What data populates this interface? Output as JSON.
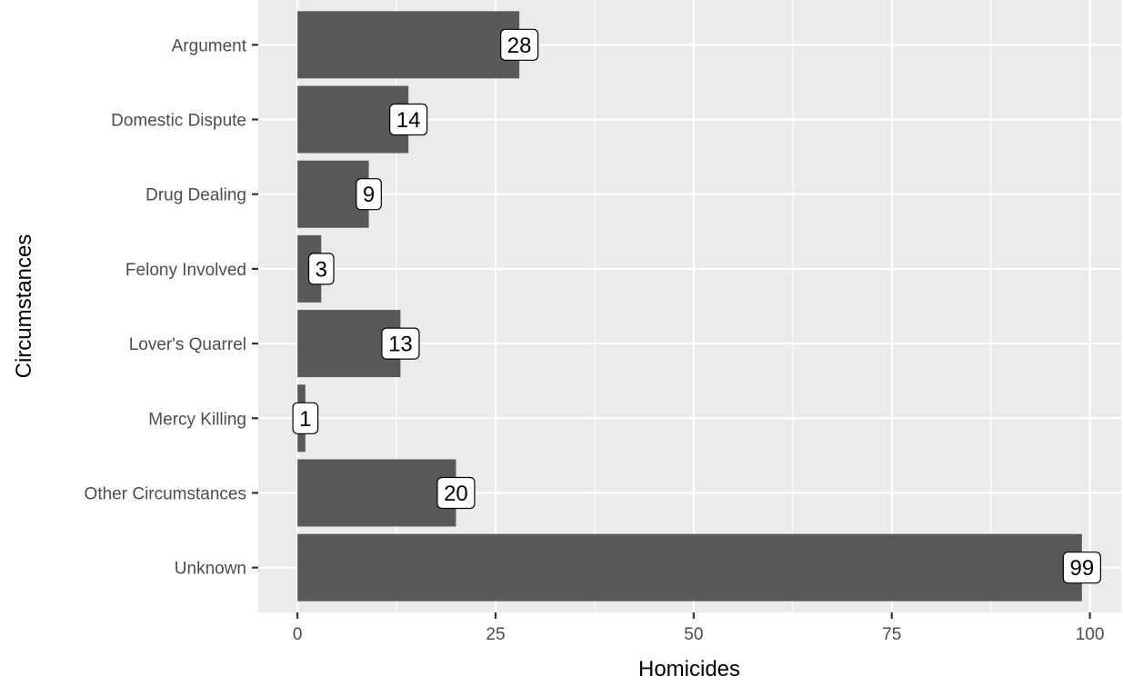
{
  "chart_data": {
    "type": "bar",
    "orientation": "horizontal",
    "categories": [
      "Argument",
      "Domestic Dispute",
      "Drug Dealing",
      "Felony Involved",
      "Lover's Quarrel",
      "Mercy Killing",
      "Other Circumstances",
      "Unknown"
    ],
    "values": [
      28,
      14,
      9,
      3,
      13,
      1,
      20,
      99
    ],
    "data_labels": [
      "28",
      "14",
      "9",
      "3",
      "13",
      "1",
      "20",
      "99"
    ],
    "xlabel": "Homicides",
    "ylabel": "Circumstances",
    "xlim": [
      -4.95,
      103.95
    ],
    "x_ticks": [
      0,
      25,
      50,
      75,
      100
    ],
    "x_tick_labels": [
      "0",
      "25",
      "50",
      "75",
      "100"
    ],
    "grid": true,
    "legend": "none",
    "colors": {
      "bar": "#595959",
      "panel_background": "#ebebeb",
      "grid": "#ffffff",
      "label_fill": "#ffffff",
      "label_border": "#000000"
    }
  }
}
